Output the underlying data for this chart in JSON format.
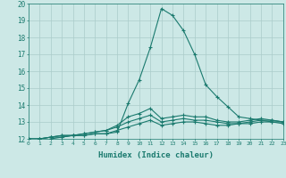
{
  "xlabel": "Humidex (Indice chaleur)",
  "ylabel": "",
  "bg_color": "#cce8e6",
  "grid_color": "#aaccca",
  "line_color": "#1a7a6e",
  "xmin": 0,
  "xmax": 23,
  "ymin": 12,
  "ymax": 20,
  "lines": [
    [
      12.0,
      11.8,
      12.0,
      12.1,
      12.2,
      12.2,
      12.3,
      12.3,
      12.4,
      14.1,
      15.5,
      17.4,
      19.7,
      19.3,
      18.4,
      17.0,
      15.2,
      14.5,
      13.9,
      13.3,
      13.2,
      13.1,
      13.1,
      13.0
    ],
    [
      12.0,
      12.0,
      12.1,
      12.2,
      12.2,
      12.3,
      12.4,
      12.5,
      12.8,
      13.3,
      13.5,
      13.8,
      13.2,
      13.3,
      13.4,
      13.3,
      13.3,
      13.1,
      13.0,
      13.0,
      13.1,
      13.2,
      13.1,
      13.0
    ],
    [
      12.0,
      12.0,
      12.1,
      12.2,
      12.2,
      12.3,
      12.4,
      12.5,
      12.7,
      13.0,
      13.2,
      13.4,
      13.0,
      13.1,
      13.2,
      13.1,
      13.1,
      13.0,
      12.9,
      12.9,
      13.0,
      13.1,
      13.0,
      13.0
    ],
    [
      12.0,
      12.0,
      12.1,
      12.1,
      12.2,
      12.2,
      12.3,
      12.3,
      12.5,
      12.7,
      12.9,
      13.1,
      12.8,
      12.9,
      13.0,
      13.0,
      12.9,
      12.8,
      12.8,
      12.9,
      12.9,
      13.0,
      13.0,
      12.9
    ]
  ]
}
